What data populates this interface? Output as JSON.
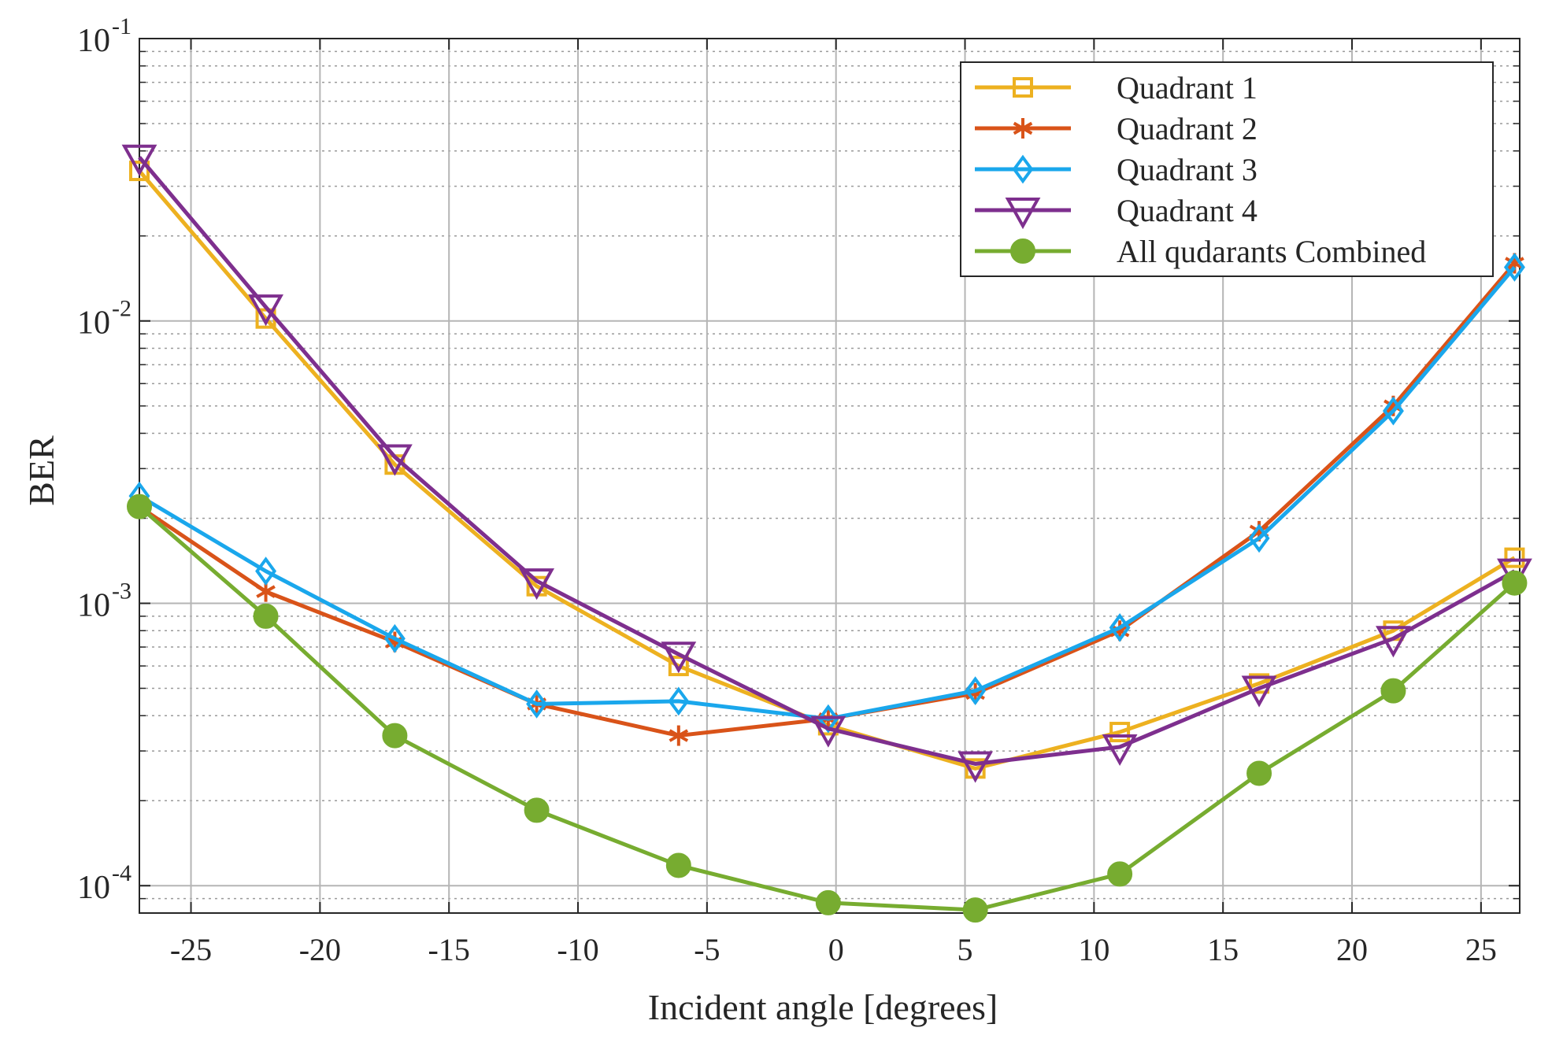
{
  "chart_data": {
    "type": "line",
    "title": "",
    "xlabel": "Incident angle [degrees]",
    "ylabel": "BER",
    "yscale": "log",
    "xlim": [
      -27,
      26.5
    ],
    "ylim": [
      8e-05,
      0.1
    ],
    "x_ticks": [
      -25,
      -20,
      -15,
      -10,
      -5,
      0,
      5,
      10,
      15,
      20,
      25
    ],
    "x_tick_labels": [
      "-25",
      "-20",
      "-15",
      "-10",
      "-5",
      "0",
      "5",
      "10",
      "15",
      "20",
      "25"
    ],
    "y_ticks": [
      {
        "value": 0.1,
        "base": "10",
        "exp": "-1"
      },
      {
        "value": 0.01,
        "base": "10",
        "exp": "-2"
      },
      {
        "value": 0.001,
        "base": "10",
        "exp": "-3"
      },
      {
        "value": 0.0001,
        "base": "10",
        "exp": "-4"
      }
    ],
    "grid": true,
    "legend_position": "top-right",
    "x": [
      -27,
      -22.1,
      -17.1,
      -11.6,
      -6.1,
      -0.3,
      5.4,
      11.0,
      16.4,
      21.6,
      26.3
    ],
    "series": [
      {
        "name": "Quadrant 1",
        "color": "#EDB120",
        "marker": "square",
        "values": [
          0.034,
          0.0102,
          0.0031,
          0.00115,
          0.0006,
          0.00037,
          0.00026,
          0.00035,
          0.00052,
          0.0008,
          0.00145
        ]
      },
      {
        "name": "Quadrant 2",
        "color": "#D95319",
        "marker": "asterisk",
        "values": [
          0.0022,
          0.0011,
          0.00073,
          0.00044,
          0.00034,
          0.00039,
          0.00048,
          0.0008,
          0.0018,
          0.005,
          0.016
        ]
      },
      {
        "name": "Quadrant 3",
        "color": "#1AA7EC",
        "marker": "diamond",
        "values": [
          0.0024,
          0.0013,
          0.00075,
          0.00044,
          0.00045,
          0.00039,
          0.00049,
          0.00082,
          0.0017,
          0.0048,
          0.0155
        ]
      },
      {
        "name": "Quadrant 4",
        "color": "#7E2F8E",
        "marker": "triangle-down",
        "values": [
          0.038,
          0.0112,
          0.0033,
          0.0012,
          0.00066,
          0.00036,
          0.00027,
          0.00031,
          0.0005,
          0.00075,
          0.0013
        ]
      },
      {
        "name": "All qudarants Combined",
        "color": "#77AC30",
        "marker": "circle",
        "values": [
          0.0022,
          0.0009,
          0.00034,
          0.000185,
          0.000118,
          8.7e-05,
          8.2e-05,
          0.00011,
          0.00025,
          0.00049,
          0.00118
        ]
      }
    ]
  }
}
